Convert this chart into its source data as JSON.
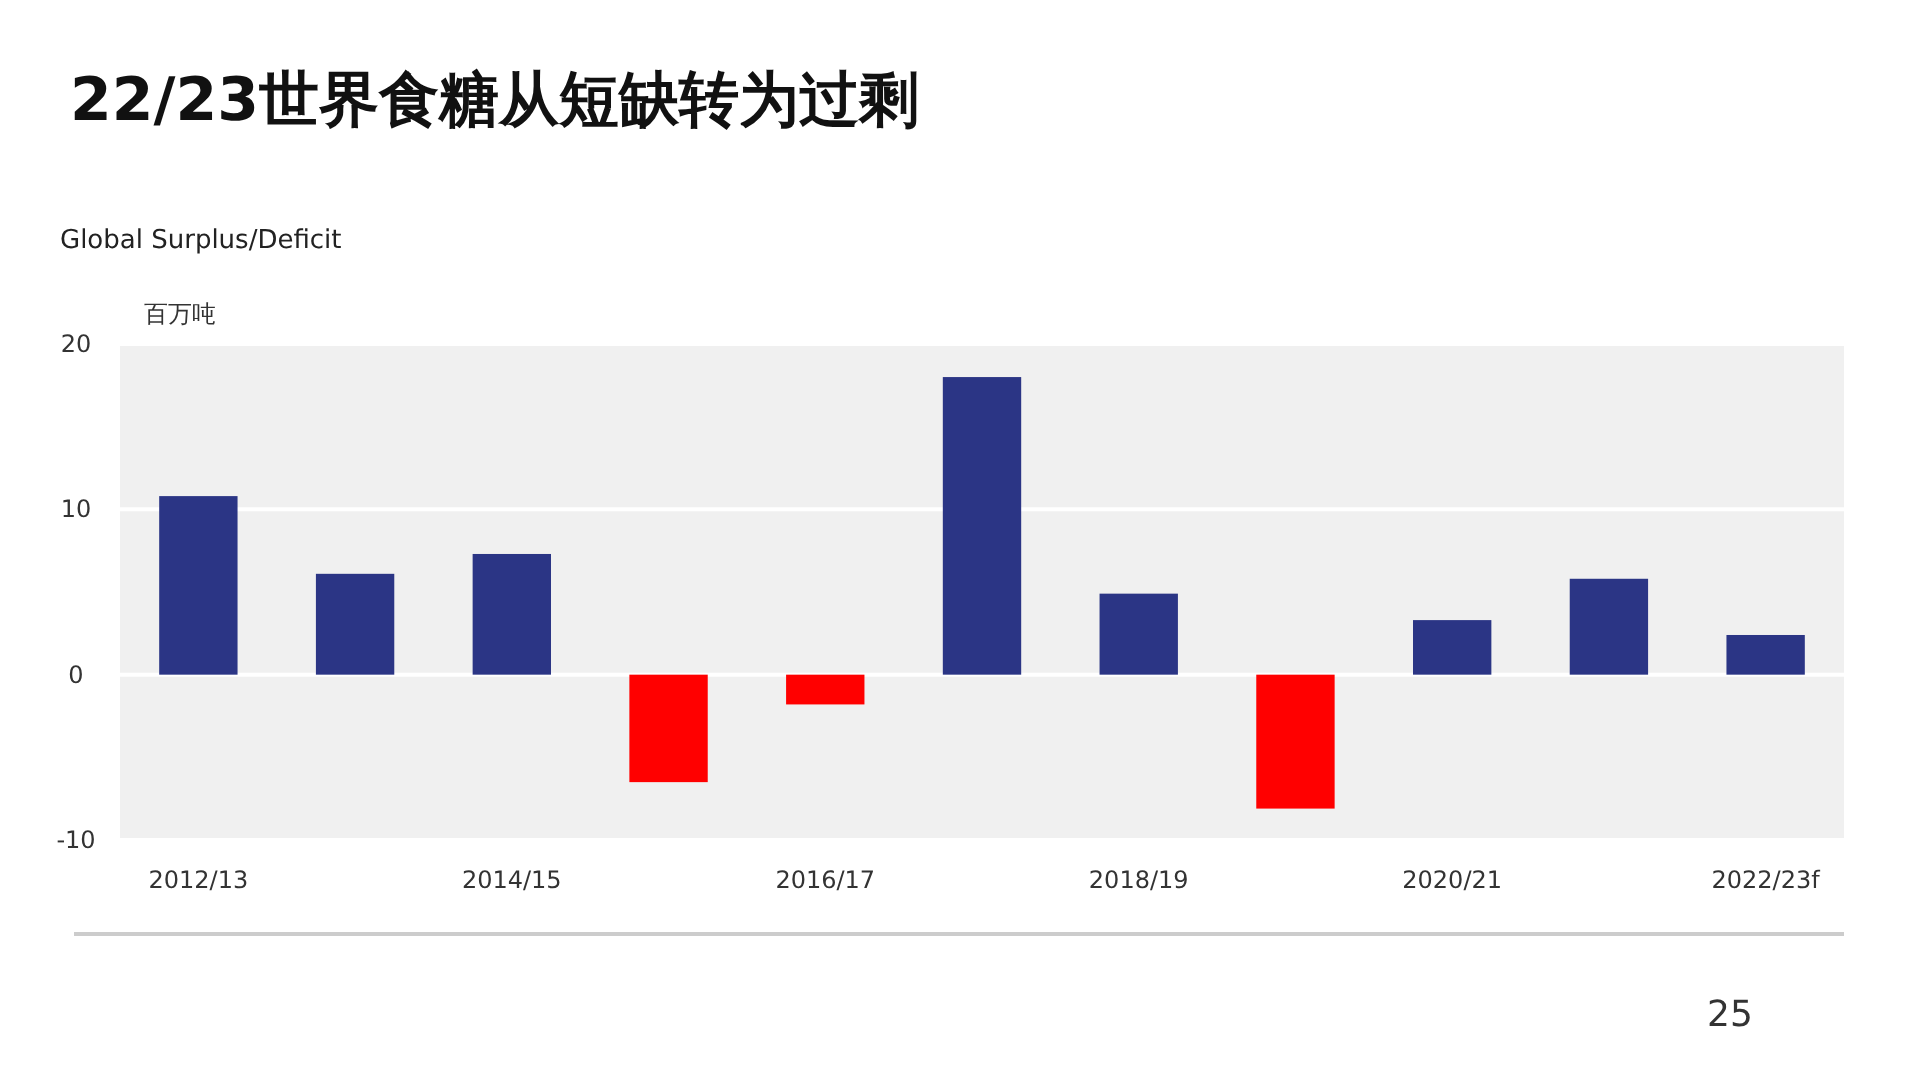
{
  "chart_data": {
    "type": "bar",
    "title": "22/23世界食糖从短缺转为过剩",
    "subtitle": "Global Surplus/Deficit",
    "ylabel": "百万吨",
    "categories": [
      "2012/13",
      null,
      "2014/15",
      null,
      "2016/17",
      null,
      "2018/19",
      null,
      "2020/21",
      null,
      "2022/23f"
    ],
    "values": [
      10.8,
      6.1,
      7.3,
      -6.5,
      -1.8,
      18.0,
      4.9,
      -8.1,
      3.3,
      5.8,
      2.4
    ],
    "colors": [
      "#2b3585",
      "#2b3585",
      "#2b3585",
      "#ff0000",
      "#ff0000",
      "#2b3585",
      "#2b3585",
      "#ff0000",
      "#2b3585",
      "#2b3585",
      "#2b3585"
    ],
    "ylim": [
      -10,
      20
    ],
    "yticks": [
      -10,
      0,
      10,
      20
    ],
    "grid": "y",
    "annotations": [
      "25"
    ]
  }
}
